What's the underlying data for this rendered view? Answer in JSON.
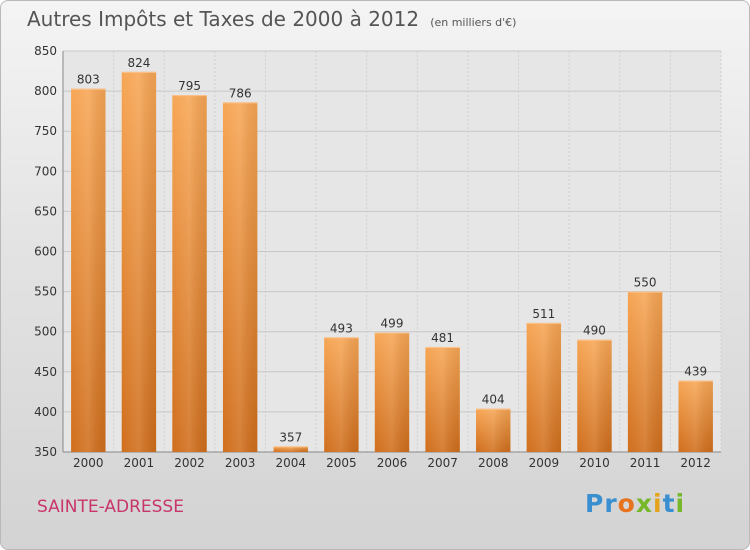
{
  "chart_data": {
    "type": "bar",
    "title": "Autres Impôts et Taxes de 2000 à 2012",
    "unit_note": "(en milliers d'€)",
    "categories": [
      "2000",
      "2001",
      "2002",
      "2003",
      "2004",
      "2005",
      "2006",
      "2007",
      "2008",
      "2009",
      "2010",
      "2011",
      "2012"
    ],
    "values": [
      803,
      824,
      795,
      786,
      357,
      493,
      499,
      481,
      404,
      511,
      490,
      550,
      439
    ],
    "ylim": [
      350,
      850
    ],
    "yticks": [
      350,
      400,
      450,
      500,
      550,
      600,
      650,
      700,
      750,
      800,
      850
    ],
    "grid": true,
    "bar_color": "#f0923a",
    "bar_color_dark": "#d0701e",
    "xlabel": "",
    "ylabel": ""
  },
  "footer": {
    "commune": "SAINTE-ADRESSE",
    "logo": [
      "Pr",
      "o",
      "x",
      "i",
      "t",
      "i"
    ]
  },
  "colors": {
    "commune": "#c8356a",
    "title": "#555555"
  }
}
